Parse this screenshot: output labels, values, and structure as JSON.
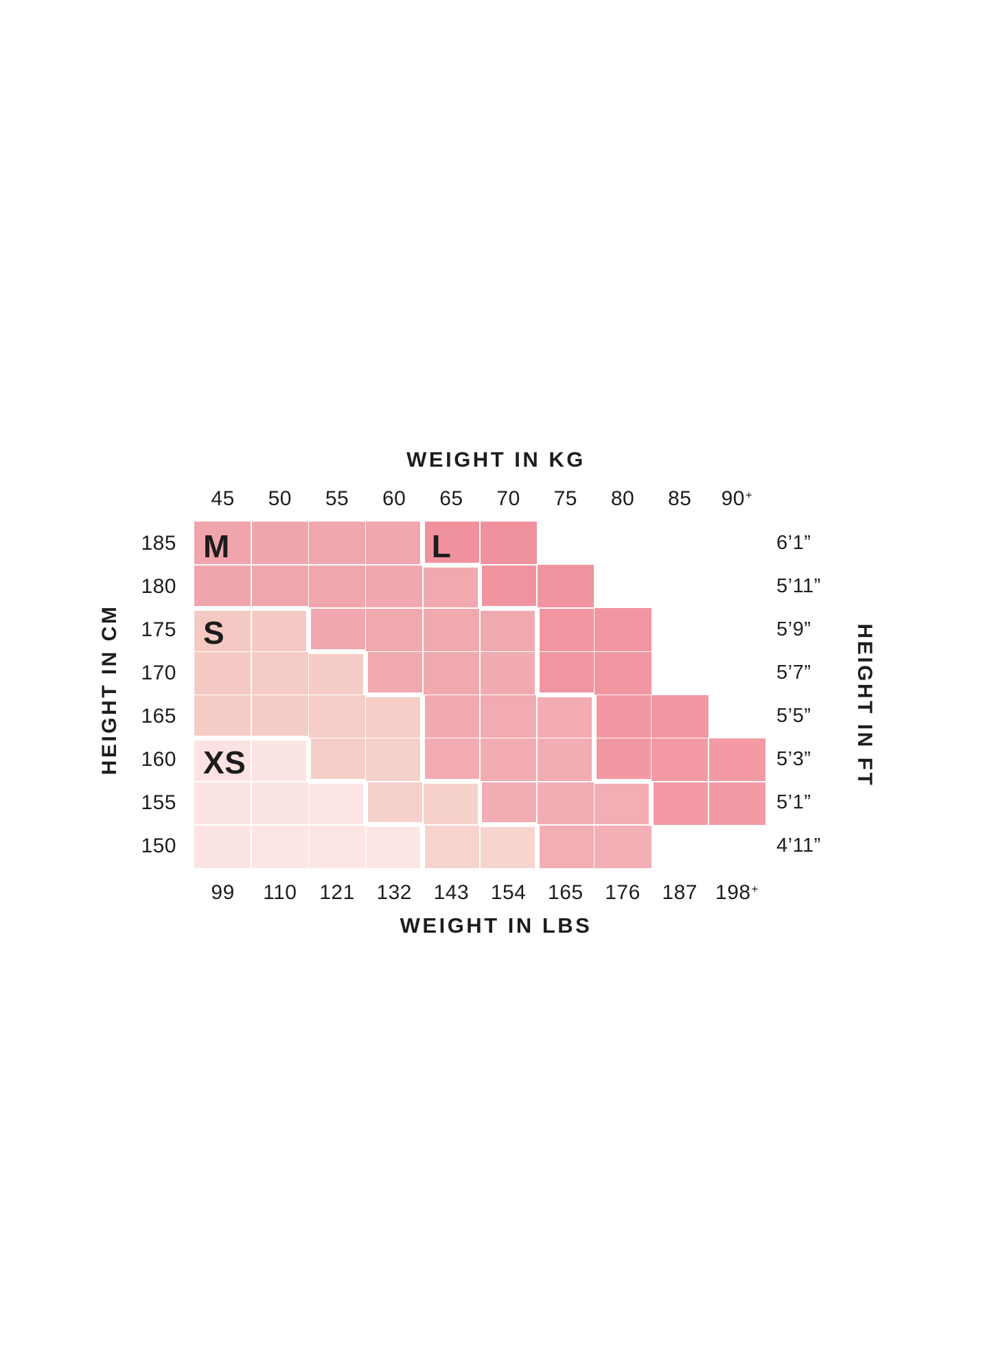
{
  "chart_data": {
    "type": "heatmap",
    "title_top": "WEIGHT IN KG",
    "title_bottom": "WEIGHT IN LBS",
    "y_left_title": "HEIGHT IN CM",
    "y_right_title": "HEIGHT IN FT",
    "x_kg": [
      "45",
      "50",
      "55",
      "60",
      "65",
      "70",
      "75",
      "80",
      "85",
      "90+"
    ],
    "x_lbs": [
      "99",
      "110",
      "121",
      "132",
      "143",
      "154",
      "165",
      "176",
      "187",
      "198+"
    ],
    "y_cm": [
      "185",
      "180",
      "175",
      "170",
      "165",
      "160",
      "155",
      "150"
    ],
    "y_ft": [
      "6’1”",
      "5’11”",
      "5’9”",
      "5’7”",
      "5’5”",
      "5’3”",
      "5’1”",
      "4’11”"
    ],
    "cells": [
      [
        "M",
        "M",
        "M",
        "M",
        "L",
        "L",
        "",
        "",
        "",
        ""
      ],
      [
        "M",
        "M",
        "M",
        "M",
        "M",
        "L",
        "L",
        "",
        "",
        ""
      ],
      [
        "S",
        "S",
        "M",
        "M",
        "M",
        "M",
        "L",
        "L",
        "",
        ""
      ],
      [
        "S",
        "S",
        "S",
        "M",
        "M",
        "M",
        "L",
        "L",
        "",
        ""
      ],
      [
        "S",
        "S",
        "S",
        "S",
        "M",
        "M",
        "M",
        "L",
        "L",
        ""
      ],
      [
        "XS",
        "XS",
        "S",
        "S",
        "M",
        "M",
        "M",
        "L",
        "L",
        "L"
      ],
      [
        "XS",
        "XS",
        "XS",
        "S",
        "S",
        "M",
        "M",
        "M",
        "L",
        "L"
      ],
      [
        "XS",
        "XS",
        "XS",
        "XS",
        "S",
        "S",
        "M",
        "M",
        "",
        ""
      ]
    ],
    "sizes": {
      "XS": {
        "color_dark": "#fbdfde",
        "color_light": "#fdebe9"
      },
      "S": {
        "color_dark": "#f4c7c1",
        "color_light": "#f8d8d2"
      },
      "M": {
        "color_dark": "#f0a4ac",
        "color_light": "#f3b0b6"
      },
      "L": {
        "color_dark": "#ef8d9b",
        "color_light": "#f39ca6"
      }
    },
    "size_labels": [
      {
        "code": "M",
        "text": "M",
        "row": 0,
        "col": 0
      },
      {
        "code": "L",
        "text": "L",
        "row": 0,
        "col": 4
      },
      {
        "code": "S",
        "text": "S",
        "row": 2,
        "col": 0
      },
      {
        "code": "XS",
        "text": "XS",
        "row": 5,
        "col": 0
      }
    ],
    "text_color": "#1d1d1d",
    "background": "#ffffff"
  }
}
